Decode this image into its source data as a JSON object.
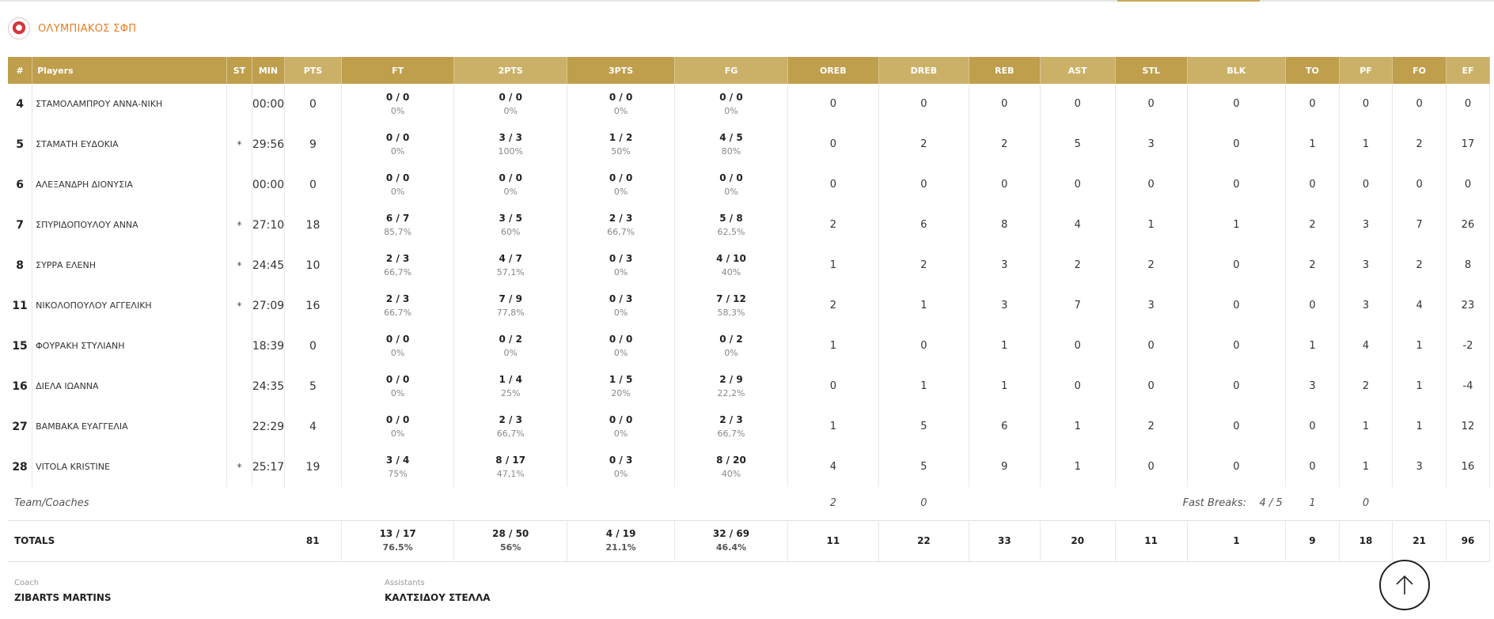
{
  "team": {
    "name": "ΟΛΥΜΠΙΑΚΟΣ ΣΦΠ"
  },
  "columns": {
    "num": "#",
    "players": "Players",
    "st": "ST",
    "min": "MIN",
    "pts": "PTS",
    "ft": "FT",
    "pts2": "2PTS",
    "pts3": "3PTS",
    "fg": "FG",
    "oreb": "OREB",
    "dreb": "DREB",
    "reb": "REB",
    "ast": "AST",
    "stl": "STL",
    "blk": "BLK",
    "to": "TO",
    "pf": "PF",
    "fo": "FO",
    "ef": "EF"
  },
  "players": [
    {
      "num": "4",
      "name": "ΣΤΑΜΟΛΑΜΠΡΟΥ ΑΝΝΑ-ΝΙΚΗ",
      "st": "",
      "min": "00:00",
      "pts": "0",
      "ft": "0 / 0",
      "ft_pct": "0%",
      "p2": "0 / 0",
      "p2_pct": "0%",
      "p3": "0 / 0",
      "p3_pct": "0%",
      "fg": "0 / 0",
      "fg_pct": "0%",
      "oreb": "0",
      "dreb": "0",
      "reb": "0",
      "ast": "0",
      "stl": "0",
      "blk": "0",
      "to": "0",
      "pf": "0",
      "fo": "0",
      "ef": "0"
    },
    {
      "num": "5",
      "name": "ΣΤΑΜΑΤΗ ΕΥΔΟΚΙΑ",
      "st": "*",
      "min": "29:56",
      "pts": "9",
      "ft": "0 / 0",
      "ft_pct": "0%",
      "p2": "3 / 3",
      "p2_pct": "100%",
      "p3": "1 / 2",
      "p3_pct": "50%",
      "fg": "4 / 5",
      "fg_pct": "80%",
      "oreb": "0",
      "dreb": "2",
      "reb": "2",
      "ast": "5",
      "stl": "3",
      "blk": "0",
      "to": "1",
      "pf": "1",
      "fo": "2",
      "ef": "17"
    },
    {
      "num": "6",
      "name": "ΑΛΕΞΑΝΔΡΗ ΔΙΟΝΥΣΙΑ",
      "st": "",
      "min": "00:00",
      "pts": "0",
      "ft": "0 / 0",
      "ft_pct": "0%",
      "p2": "0 / 0",
      "p2_pct": "0%",
      "p3": "0 / 0",
      "p3_pct": "0%",
      "fg": "0 / 0",
      "fg_pct": "0%",
      "oreb": "0",
      "dreb": "0",
      "reb": "0",
      "ast": "0",
      "stl": "0",
      "blk": "0",
      "to": "0",
      "pf": "0",
      "fo": "0",
      "ef": "0"
    },
    {
      "num": "7",
      "name": "ΣΠΥΡΙΔΟΠΟΥΛΟΥ ΑΝΝΑ",
      "st": "*",
      "min": "27:10",
      "pts": "18",
      "ft": "6 / 7",
      "ft_pct": "85,7%",
      "p2": "3 / 5",
      "p2_pct": "60%",
      "p3": "2 / 3",
      "p3_pct": "66,7%",
      "fg": "5 / 8",
      "fg_pct": "62,5%",
      "oreb": "2",
      "dreb": "6",
      "reb": "8",
      "ast": "4",
      "stl": "1",
      "blk": "1",
      "to": "2",
      "pf": "3",
      "fo": "7",
      "ef": "26"
    },
    {
      "num": "8",
      "name": "ΣΥΡΡΑ ΕΛΕΝΗ",
      "st": "*",
      "min": "24:45",
      "pts": "10",
      "ft": "2 / 3",
      "ft_pct": "66,7%",
      "p2": "4 / 7",
      "p2_pct": "57,1%",
      "p3": "0 / 3",
      "p3_pct": "0%",
      "fg": "4 / 10",
      "fg_pct": "40%",
      "oreb": "1",
      "dreb": "2",
      "reb": "3",
      "ast": "2",
      "stl": "2",
      "blk": "0",
      "to": "2",
      "pf": "3",
      "fo": "2",
      "ef": "8"
    },
    {
      "num": "11",
      "name": "ΝΙΚΟΛΟΠΟΥΛΟΥ ΑΓΓΕΛΙΚΗ",
      "st": "*",
      "min": "27:09",
      "pts": "16",
      "ft": "2 / 3",
      "ft_pct": "66,7%",
      "p2": "7 / 9",
      "p2_pct": "77,8%",
      "p3": "0 / 3",
      "p3_pct": "0%",
      "fg": "7 / 12",
      "fg_pct": "58,3%",
      "oreb": "2",
      "dreb": "1",
      "reb": "3",
      "ast": "7",
      "stl": "3",
      "blk": "0",
      "to": "0",
      "pf": "3",
      "fo": "4",
      "ef": "23"
    },
    {
      "num": "15",
      "name": "ΦΟΥΡΑΚΗ ΣΤΥΛΙΑΝΗ",
      "st": "",
      "min": "18:39",
      "pts": "0",
      "ft": "0 / 0",
      "ft_pct": "0%",
      "p2": "0 / 2",
      "p2_pct": "0%",
      "p3": "0 / 0",
      "p3_pct": "0%",
      "fg": "0 / 2",
      "fg_pct": "0%",
      "oreb": "1",
      "dreb": "0",
      "reb": "1",
      "ast": "0",
      "stl": "0",
      "blk": "0",
      "to": "1",
      "pf": "4",
      "fo": "1",
      "ef": "-2"
    },
    {
      "num": "16",
      "name": "ΔΙΕΛΑ ΙΩΑΝΝΑ",
      "st": "",
      "min": "24:35",
      "pts": "5",
      "ft": "0 / 0",
      "ft_pct": "0%",
      "p2": "1 / 4",
      "p2_pct": "25%",
      "p3": "1 / 5",
      "p3_pct": "20%",
      "fg": "2 / 9",
      "fg_pct": "22,2%",
      "oreb": "0",
      "dreb": "1",
      "reb": "1",
      "ast": "0",
      "stl": "0",
      "blk": "0",
      "to": "3",
      "pf": "2",
      "fo": "1",
      "ef": "-4"
    },
    {
      "num": "27",
      "name": "ΒΑΜΒΑΚΑ ΕΥΑΓΓΕΛΙΑ",
      "st": "",
      "min": "22:29",
      "pts": "4",
      "ft": "0 / 0",
      "ft_pct": "0%",
      "p2": "2 / 3",
      "p2_pct": "66,7%",
      "p3": "0 / 0",
      "p3_pct": "0%",
      "fg": "2 / 3",
      "fg_pct": "66,7%",
      "oreb": "1",
      "dreb": "5",
      "reb": "6",
      "ast": "1",
      "stl": "2",
      "blk": "0",
      "to": "0",
      "pf": "1",
      "fo": "1",
      "ef": "12"
    },
    {
      "num": "28",
      "name": "VITOLA KRISTINE",
      "st": "*",
      "min": "25:17",
      "pts": "19",
      "ft": "3 / 4",
      "ft_pct": "75%",
      "p2": "8 / 17",
      "p2_pct": "47,1%",
      "p3": "0 / 3",
      "p3_pct": "0%",
      "fg": "8 / 20",
      "fg_pct": "40%",
      "oreb": "4",
      "dreb": "5",
      "reb": "9",
      "ast": "1",
      "stl": "0",
      "blk": "0",
      "to": "0",
      "pf": "1",
      "fo": "3",
      "ef": "16"
    }
  ],
  "team_row": {
    "label": "Team/Coaches",
    "oreb": "2",
    "dreb": "0",
    "fast_breaks_label": "Fast Breaks:",
    "fast_breaks_value": "4 / 5",
    "to": "1",
    "pf": "0"
  },
  "totals": {
    "label": "TOTALS",
    "pts": "81",
    "ft": "13 / 17",
    "ft_pct": "76.5%",
    "p2": "28 / 50",
    "p2_pct": "56%",
    "p3": "4 / 19",
    "p3_pct": "21.1%",
    "fg": "32 / 69",
    "fg_pct": "46.4%",
    "oreb": "11",
    "dreb": "22",
    "reb": "33",
    "ast": "20",
    "stl": "11",
    "blk": "1",
    "to": "9",
    "pf": "18",
    "fo": "21",
    "ef": "96"
  },
  "coach": {
    "label": "Coach",
    "name": "ZIBARTS MARTINS"
  },
  "assistants": {
    "label": "Assistants",
    "name": "ΚΑΛΤΣΙΔΟΥ ΣΤΕΛΛΑ"
  },
  "icons": {
    "scroll_top": "arrow-up-icon",
    "team_logo": "team-logo-icon"
  }
}
